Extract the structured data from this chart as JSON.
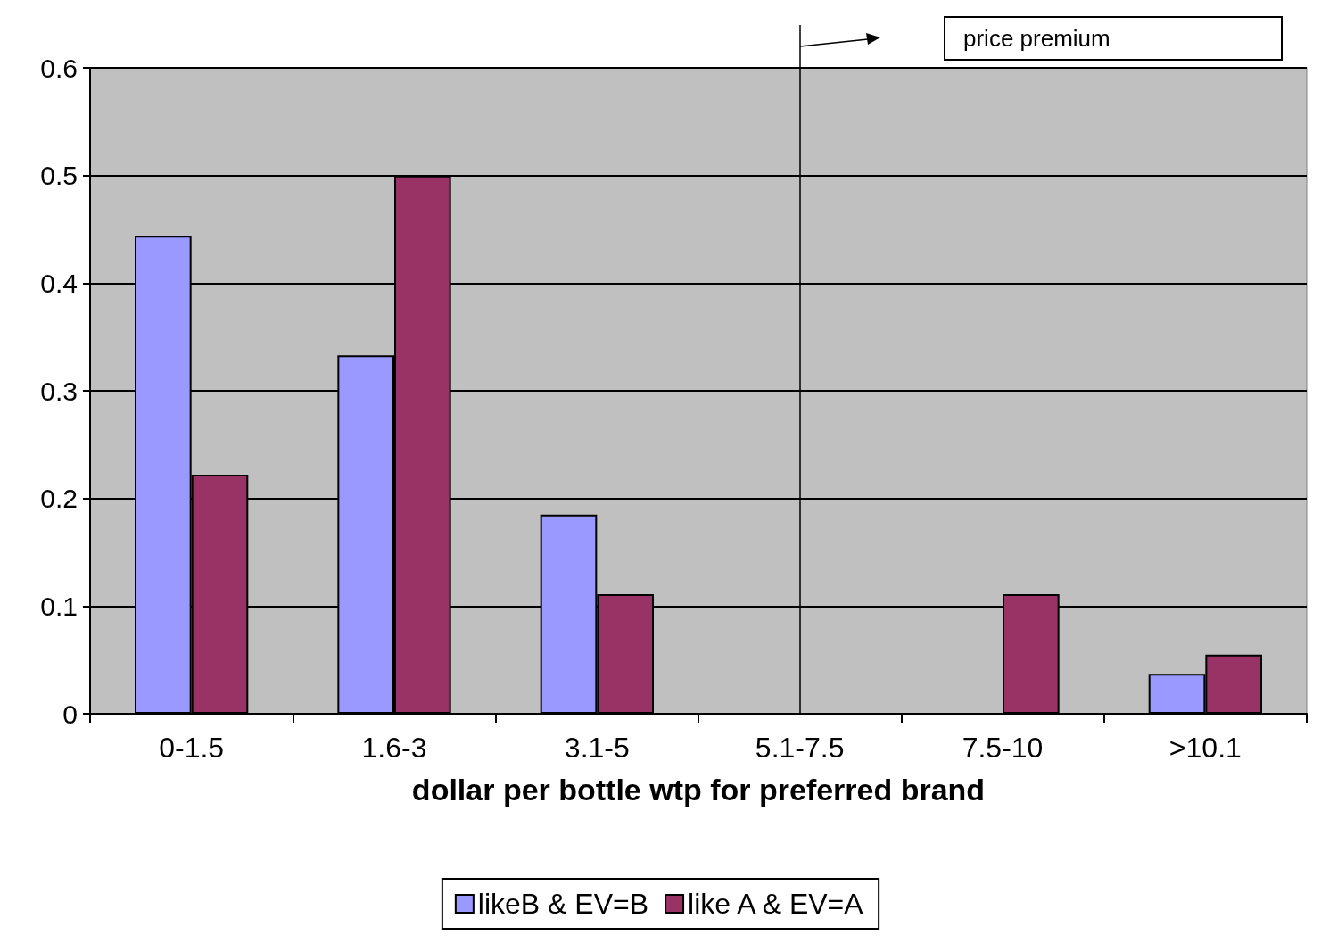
{
  "chart_data": {
    "type": "bar",
    "xlabel": "dollar per bottle wtp for preferred brand",
    "categories": [
      "0-1.5",
      "1.6-3",
      "3.1-5",
      "5.1-7.5",
      "7.5-10",
      ">10.1"
    ],
    "series": [
      {
        "name": "likeB & EV=B",
        "color": "#9999ff",
        "values": [
          0.444,
          0.333,
          0.185,
          0,
          0,
          0.037
        ]
      },
      {
        "name": "like A & EV=A",
        "color": "#993366",
        "values": [
          0.222,
          0.5,
          0.111,
          0,
          0.111,
          0.055
        ]
      }
    ],
    "ylim": [
      0,
      0.6
    ],
    "yticks": [
      0,
      0.1,
      0.2,
      0.3,
      0.4,
      0.5,
      0.6
    ],
    "grid": "y",
    "legend": "bottom",
    "ref_lines": [
      {
        "axis": "x",
        "value": "5.1-7.5",
        "color": "#000000"
      }
    ],
    "annotations": [
      "price premium"
    ]
  }
}
